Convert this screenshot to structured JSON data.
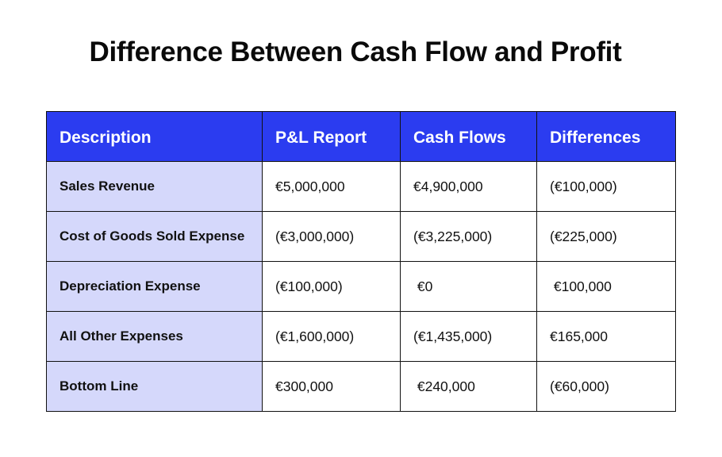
{
  "title": "Difference Between Cash Flow and Profit",
  "colors": {
    "header_bg": "#2b3cf0",
    "header_text": "#ffffff",
    "description_bg": "#d5d8fb",
    "border": "#111111"
  },
  "table": {
    "headers": [
      "Description",
      "P&L Report",
      "Cash Flows",
      "Differences"
    ],
    "rows": [
      {
        "description": "Sales Revenue",
        "pl_report": "€5,000,000",
        "cash_flows": "€4,900,000",
        "differences": "(€100,000)"
      },
      {
        "description": "Cost of Goods Sold Expense",
        "pl_report": "(€3,000,000)",
        "cash_flows": "(€3,225,000)",
        "differences": "(€225,000)"
      },
      {
        "description": "Depreciation Expense",
        "pl_report": "(€100,000)",
        "cash_flows": " €0",
        "differences": " €100,000"
      },
      {
        "description": "All Other Expenses",
        "pl_report": "(€1,600,000)",
        "cash_flows": "(€1,435,000)",
        "differences": "€165,000"
      },
      {
        "description": "Bottom Line",
        "pl_report": "€300,000",
        "cash_flows": " €240,000",
        "differences": "(€60,000)"
      }
    ]
  }
}
